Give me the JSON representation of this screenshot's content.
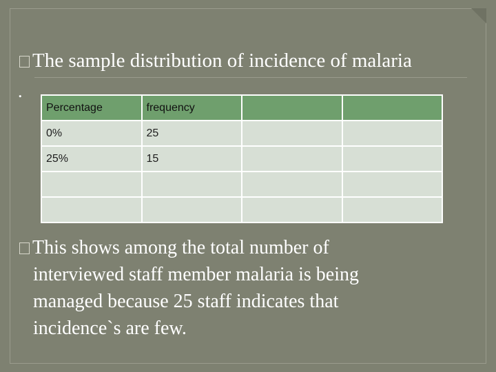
{
  "title": "The sample distribution of incidence of malaria",
  "dot": ".",
  "table": {
    "headers": [
      "Percentage",
      "frequency",
      "",
      ""
    ],
    "rows": [
      [
        "0%",
        "25",
        "",
        ""
      ],
      [
        "25%",
        "15",
        "",
        ""
      ],
      [
        "",
        "",
        "",
        ""
      ],
      [
        "",
        "",
        "",
        ""
      ]
    ]
  },
  "body_lines": [
    "This shows among the total number of",
    "interviewed staff member malaria is being",
    "managed because 25 staff indicates that",
    "incidence`s are few."
  ]
}
